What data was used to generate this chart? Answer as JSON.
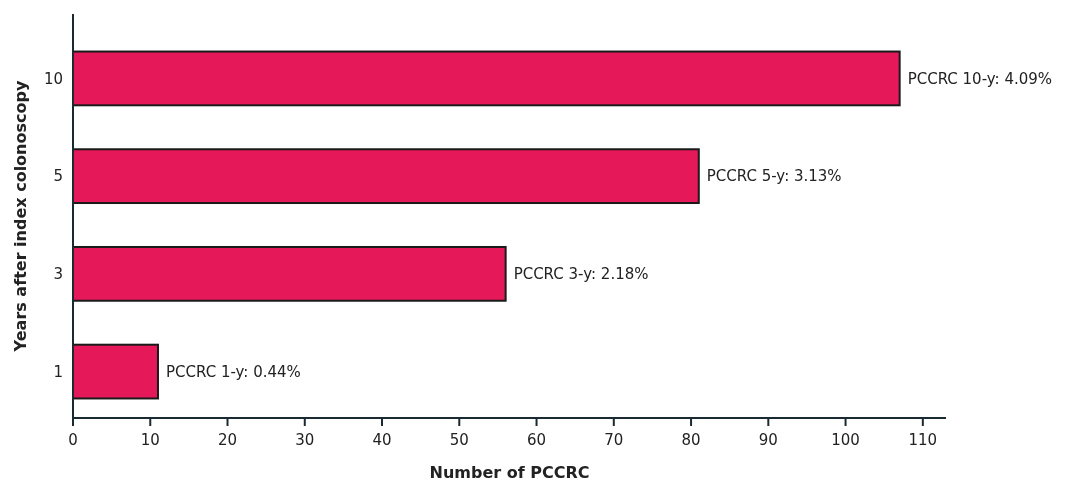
{
  "chart_data": {
    "type": "bar",
    "orientation": "horizontal",
    "xlabel": "Number of PCCRC",
    "ylabel": "Years after index colonoscopy",
    "categories": [
      "10",
      "5",
      "3",
      "1"
    ],
    "values": [
      107,
      81,
      56,
      11
    ],
    "annotations": [
      {
        "text": "PCCRC 10-y: 4.09%",
        "x": 107,
        "y": "10"
      },
      {
        "text": "PCCRC 5-y: 3.13%",
        "x": 81,
        "y": "5"
      },
      {
        "text": "PCCRC 3-y: 2.18%",
        "x": 56,
        "y": "3"
      },
      {
        "text": "PCCRC 1-y: 0.44%",
        "x": 11,
        "y": "1"
      }
    ],
    "color": "#e5185a",
    "xlim": [
      0,
      113
    ],
    "xticks": [
      0,
      10,
      20,
      30,
      40,
      50,
      60,
      70,
      80,
      90,
      100,
      110
    ],
    "grid": false
  }
}
